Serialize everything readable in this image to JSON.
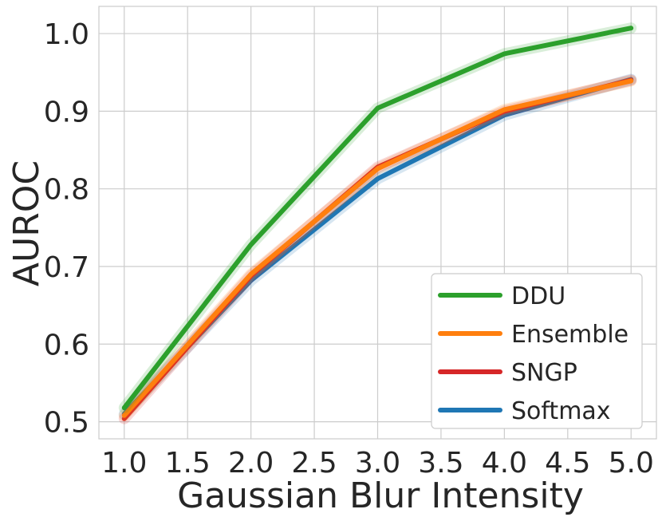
{
  "chart_data": {
    "type": "line",
    "x": [
      1.0,
      2.0,
      3.0,
      4.0,
      5.0
    ],
    "xlabel": "Gaussian Blur Intensity",
    "ylabel": "AUROC",
    "xlim": [
      0.8,
      5.2
    ],
    "ylim": [
      0.478,
      1.035
    ],
    "xticks": [
      "1.0",
      "1.5",
      "2.0",
      "2.5",
      "3.0",
      "3.5",
      "4.0",
      "4.5",
      "5.0"
    ],
    "yticks": [
      "0.5",
      "0.6",
      "0.7",
      "0.8",
      "0.9",
      "1.0"
    ],
    "grid": true,
    "legend_position": "bottom-right",
    "series": [
      {
        "name": "DDU",
        "color": "#2ca02c",
        "values": [
          0.518,
          0.728,
          0.904,
          0.974,
          1.007
        ]
      },
      {
        "name": "Ensemble",
        "color": "#ff7f0e",
        "values": [
          0.508,
          0.69,
          0.826,
          0.902,
          0.939
        ]
      },
      {
        "name": "SNGP",
        "color": "#d62728",
        "values": [
          0.504,
          0.688,
          0.828,
          0.9,
          0.94
        ]
      },
      {
        "name": "Softmax",
        "color": "#1f77b4",
        "values": [
          0.51,
          0.682,
          0.813,
          0.895,
          0.941
        ]
      }
    ]
  }
}
